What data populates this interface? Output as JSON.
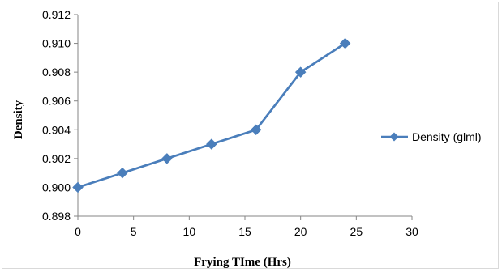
{
  "chart_data": {
    "type": "line",
    "title": "",
    "xlabel": "Frying TIme (Hrs)",
    "ylabel": "Density",
    "xlim": [
      0,
      30
    ],
    "ylim": [
      0.898,
      0.912
    ],
    "x_ticks": [
      "0",
      "5",
      "10",
      "15",
      "20",
      "25",
      "30"
    ],
    "y_ticks": [
      "0.898",
      "0.900",
      "0.902",
      "0.904",
      "0.906",
      "0.908",
      "0.910",
      "0.912"
    ],
    "grid": false,
    "legend_position": "right",
    "series": [
      {
        "name": "Density (glml)",
        "color": "#4a7ebb",
        "marker": "diamond",
        "x": [
          0,
          4,
          8,
          12,
          16,
          20,
          24
        ],
        "y": [
          0.9,
          0.901,
          0.902,
          0.903,
          0.904,
          0.908,
          0.91
        ]
      }
    ]
  }
}
